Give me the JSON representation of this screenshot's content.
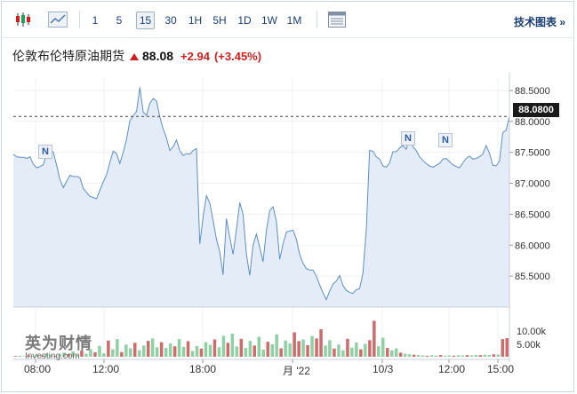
{
  "toolbar": {
    "intervals": [
      "1",
      "5",
      "15",
      "30",
      "1H",
      "5H",
      "1D",
      "1W",
      "1M"
    ],
    "active_interval": "15",
    "tech_chart_label": "技术图表 »"
  },
  "quote": {
    "name": "伦敦布伦特原油期货",
    "price": "88.08",
    "change": "+2.94",
    "change_pct": "(+3.45%)",
    "direction_color": "#d61d1d"
  },
  "chart_data": {
    "type": "area",
    "y_ticks": [
      "88.5000",
      "88.0000",
      "87.5000",
      "87.0000",
      "86.5000",
      "86.0000",
      "85.5000"
    ],
    "ylim": [
      85.0,
      88.7
    ],
    "current_price_label": "88.0800",
    "current_price": 88.08,
    "x_ticks": [
      "08:00",
      "12:00",
      "18:00",
      "月 '22",
      "10/3",
      "12:00",
      "15:00"
    ],
    "volume_ticks": [
      "10.00k",
      "5.00k"
    ],
    "news_markers": [
      "N",
      "N",
      "N"
    ],
    "series": [
      {
        "values": [
          87.47,
          87.43,
          87.42,
          87.42,
          87.4,
          87.43,
          87.31,
          87.25,
          87.27,
          87.3,
          87.47,
          87.52,
          87.51,
          87.29,
          87.06,
          86.93,
          87.03,
          87.13,
          87.11,
          87.11,
          87.09,
          86.92,
          86.85,
          86.79,
          86.77,
          86.75,
          86.89,
          87.02,
          87.14,
          87.34,
          87.52,
          87.48,
          87.32,
          87.5,
          87.71,
          88.01,
          88.09,
          88.16,
          88.55,
          88.15,
          88.1,
          88.29,
          88.37,
          88.33,
          88.07,
          87.88,
          87.73,
          87.53,
          87.59,
          87.7,
          87.53,
          87.45,
          87.48,
          87.47,
          87.53,
          87.56,
          86.02,
          86.46,
          86.8,
          86.68,
          86.4,
          86.1,
          85.89,
          85.52,
          86.43,
          86.13,
          85.85,
          86.25,
          86.69,
          86.5,
          85.86,
          85.51,
          86.0,
          86.18,
          85.97,
          85.73,
          86.23,
          86.56,
          86.62,
          86.39,
          85.77,
          86.02,
          86.21,
          86.23,
          86.24,
          86.1,
          85.85,
          85.71,
          85.62,
          85.6,
          85.6,
          85.5,
          85.36,
          85.23,
          85.12,
          85.26,
          85.37,
          85.42,
          85.51,
          85.35,
          85.27,
          85.24,
          85.22,
          85.28,
          85.3,
          85.54,
          86.25,
          87.53,
          87.52,
          87.43,
          87.39,
          87.28,
          87.26,
          87.33,
          87.51,
          87.51,
          87.57,
          87.61,
          87.55,
          87.75,
          87.59,
          87.53,
          87.43,
          87.37,
          87.32,
          87.28,
          87.26,
          87.29,
          87.32,
          87.39,
          87.4,
          87.35,
          87.3,
          87.27,
          87.25,
          87.33,
          87.4,
          87.44,
          87.39,
          87.4,
          87.43,
          87.47,
          87.61,
          87.49,
          87.29,
          87.28,
          87.36,
          87.82,
          87.86,
          88.08
        ]
      }
    ],
    "volume": [
      200,
      300,
      150,
      400,
      250,
      600,
      350,
      900,
      500,
      300,
      700,
      1200,
      800,
      1600,
      500,
      1800,
      900,
      2200,
      1300,
      3200,
      1000,
      4800,
      2200,
      5200,
      1400,
      3600,
      2500,
      4100,
      1900,
      3300,
      4700,
      5400,
      2800,
      4300,
      2600,
      3900,
      3100,
      5200,
      2900,
      4600,
      1700,
      3200,
      2400,
      4300,
      3500,
      5100,
      2800,
      6200,
      4100,
      6800,
      3000,
      5300,
      2600,
      4700,
      3300,
      5900,
      2100,
      4400,
      3700,
      6600,
      2500,
      4800,
      3900,
      7200,
      4600,
      5100,
      3400,
      6100,
      5400,
      8100,
      3300,
      4900,
      2400,
      3600,
      1900,
      5300,
      2700,
      4200,
      2200,
      3800,
      4900,
      10600,
      3100,
      5600,
      2600,
      1900,
      2500,
      1200,
      900,
      700,
      600,
      500,
      400,
      300,
      450,
      350,
      500,
      300,
      380,
      320,
      450,
      380,
      500,
      410,
      540,
      460,
      600,
      550,
      700,
      650,
      5200,
      5500
    ]
  }
}
